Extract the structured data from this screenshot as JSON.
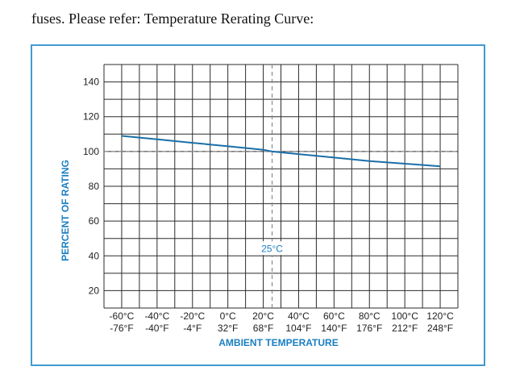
{
  "intro_text": "fuses. Please refer: Temperature Rerating Curve:",
  "colors": {
    "frame": "#3f9bd2",
    "curve": "#1a6fa8",
    "axis_title": "#1a7fc1",
    "grid": "#2b2b2b",
    "reference": "#8a8a8a",
    "tick_text": "#222222"
  },
  "chart_data": {
    "type": "line",
    "title": "",
    "xlabel": "AMBIENT TEMPERATURE",
    "ylabel": "PERCENT OF RATING",
    "xlim": [
      -70,
      130
    ],
    "ylim": [
      10,
      150
    ],
    "grid": true,
    "x_grid_step": 10,
    "y_grid_step": 10,
    "x_ticks": [
      {
        "value": -60,
        "label_c": "-60°C",
        "label_f": "-76°F"
      },
      {
        "value": -40,
        "label_c": "-40°C",
        "label_f": "-40°F"
      },
      {
        "value": -20,
        "label_c": "-20°C",
        "label_f": "-4°F"
      },
      {
        "value": 0,
        "label_c": "0°C",
        "label_f": "32°F"
      },
      {
        "value": 20,
        "label_c": "20°C",
        "label_f": "68°F"
      },
      {
        "value": 40,
        "label_c": "40°C",
        "label_f": "104°F"
      },
      {
        "value": 60,
        "label_c": "60°C",
        "label_f": "140°F"
      },
      {
        "value": 80,
        "label_c": "80°C",
        "label_f": "176°F"
      },
      {
        "value": 100,
        "label_c": "100°C",
        "label_f": "212°F"
      },
      {
        "value": 120,
        "label_c": "120°C",
        "label_f": "248°F"
      }
    ],
    "y_ticks": [
      20,
      40,
      60,
      80,
      100,
      120,
      140
    ],
    "series": [
      {
        "x": [
          -60,
          -40,
          -20,
          0,
          20,
          25,
          40,
          60,
          80,
          100,
          120
        ],
        "y": [
          109,
          107,
          105,
          103,
          101,
          100,
          98.5,
          96.5,
          94.5,
          93,
          91.5
        ]
      }
    ],
    "reference_lines": {
      "horizontal": 100,
      "vertical": 25,
      "vertical_label": "25°C"
    }
  }
}
